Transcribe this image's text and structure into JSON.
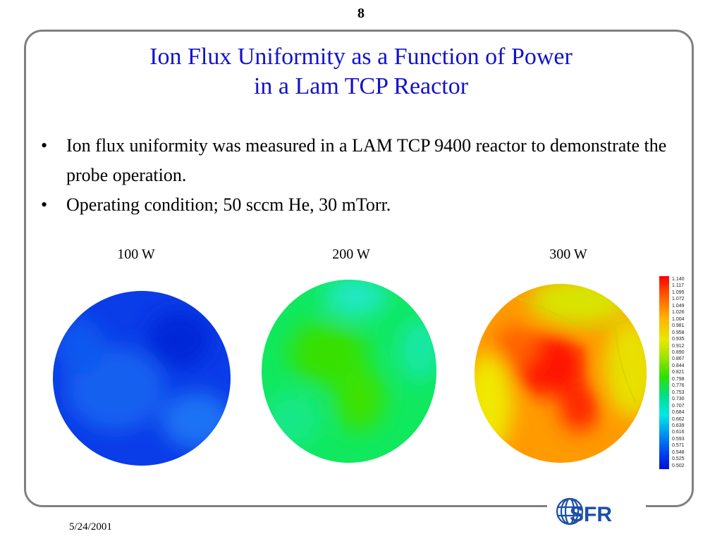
{
  "page_number": "8",
  "title": {
    "line1": "Ion Flux Uniformity as a Function of Power",
    "line2": "in a Lam TCP Reactor"
  },
  "bullets": [
    "Ion flux uniformity was measured in a LAM TCP 9400 reactor to demonstrate the probe operation.",
    "Operating condition; 50 sccm He, 30 mTorr."
  ],
  "panels": [
    {
      "label": "100 W"
    },
    {
      "label": "200 W"
    },
    {
      "label": "300 W"
    }
  ],
  "colorbar": {
    "ticks": [
      "1.140",
      "1.117",
      "1.095",
      "1.072",
      "1.049",
      "1.026",
      "1.004",
      "0.981",
      "0.958",
      "0.935",
      "0.912",
      "0.890",
      "0.867",
      "0.844",
      "0.821",
      "0.798",
      "0.776",
      "0.753",
      "0.730",
      "0.707",
      "0.684",
      "0.662",
      "0.639",
      "0.616",
      "0.593",
      "0.571",
      "0.548",
      "0.525",
      "0.502"
    ]
  },
  "footer": {
    "date": "5/24/2001",
    "logo_text": "SFR"
  },
  "colors": {
    "title": "#1212cc",
    "frame": "#808080",
    "logo_blue": "#1a4fa8"
  }
}
